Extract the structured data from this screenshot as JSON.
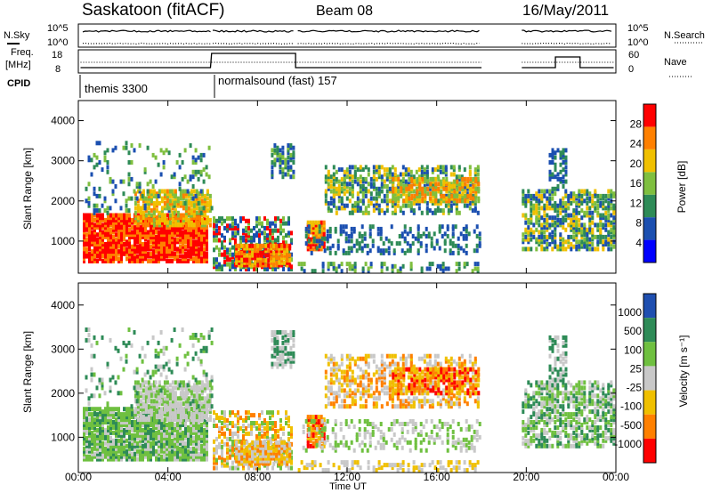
{
  "header": {
    "site_title": "Saskatoon (fitACF)",
    "beam": "Beam 08",
    "date": "16/May/2011"
  },
  "summary_panel": {
    "left_label": "N.Sky",
    "left_ticks": [
      "10^5",
      "10^0"
    ],
    "right_label": "N.Search",
    "right_ticks": [
      "10^5",
      "10^0"
    ],
    "freq_label_line1": "Freq.",
    "freq_label_line2": "[MHz]",
    "freq_ticks": [
      "18",
      "8"
    ],
    "nave_label": "Nave",
    "nave_ticks": [
      "60",
      "0"
    ],
    "cpid_label": "CPID",
    "cpid_entries": [
      {
        "name": "themis 3300",
        "start_hour": 0
      },
      {
        "name": "normalsound (fast) 157",
        "start_hour": 6
      }
    ]
  },
  "chart_data": [
    {
      "type": "heatmap",
      "name": "power",
      "xlabel": "",
      "ylabel": "Slant Range [km]",
      "x_range_hours": [
        0,
        24
      ],
      "ylim": [
        200,
        4500
      ],
      "y_ticks": [
        "1000",
        "2000",
        "3000",
        "4000"
      ],
      "colorbar_label": "Power [dB]",
      "colorbar_ticks": [
        "4",
        "8",
        "12",
        "16",
        "20",
        "24",
        "28"
      ],
      "colorbar_colors": [
        "#0000ff",
        "#1b4fb0",
        "#2e8b57",
        "#7fbf3f",
        "#f0c000",
        "#ff8000",
        "#ff0000"
      ]
    },
    {
      "type": "heatmap",
      "name": "velocity",
      "xlabel": "Time UT",
      "ylabel": "Slant Range [km]",
      "x_range_hours": [
        0,
        24
      ],
      "ylim": [
        200,
        4500
      ],
      "y_ticks": [
        "1000",
        "2000",
        "3000",
        "4000"
      ],
      "x_ticks": [
        "00:00",
        "04:00",
        "08:00",
        "12:00",
        "16:00",
        "20:00",
        "00:00"
      ],
      "colorbar_label": "Velocity [m s⁻¹]",
      "colorbar_ticks": [
        "1000",
        "500",
        "100",
        "25",
        "-25",
        "-100",
        "-500",
        "-1000"
      ],
      "colorbar_colors": [
        "#1f4fb0",
        "#2e8b57",
        "#6fc040",
        "#c8c8c8",
        "#f0c000",
        "#ff8000",
        "#ff0000"
      ]
    }
  ]
}
